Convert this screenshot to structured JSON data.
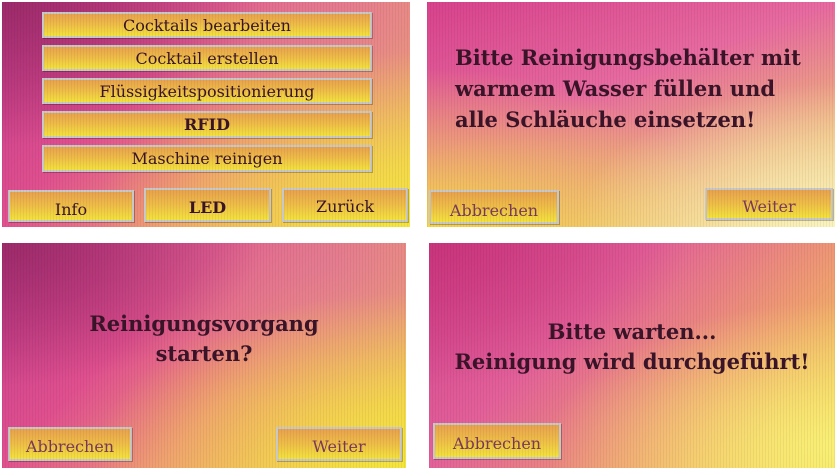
{
  "screen_menu": {
    "items": [
      "Cocktails bearbeiten",
      "Cocktail erstellen",
      "Flüssigkeitspositionierung",
      "RFID",
      "Maschine reinigen"
    ],
    "bottom": [
      "Info",
      "LED",
      "Zurück"
    ]
  },
  "screen_prepare": {
    "lines": [
      "Bitte Reinigungsbehälter mit",
      "warmem Wasser füllen und",
      "alle Schläuche einsetzen!"
    ],
    "cancel": "Abbrechen",
    "next": "Weiter"
  },
  "screen_confirm": {
    "lines": [
      "Reinigungsvorgang",
      "starten?"
    ],
    "cancel": "Abbrechen",
    "next": "Weiter"
  },
  "screen_wait": {
    "lines": [
      "Bitte warten...",
      "Reinigung wird durchgeführt!"
    ],
    "cancel": "Abbrechen"
  },
  "colors": {
    "button_top": "#e8a24e",
    "button_bottom": "#f3e23e",
    "text": "#3a1428",
    "bg_magenta": "#d0408c",
    "bg_yellow": "#f3e23e"
  }
}
